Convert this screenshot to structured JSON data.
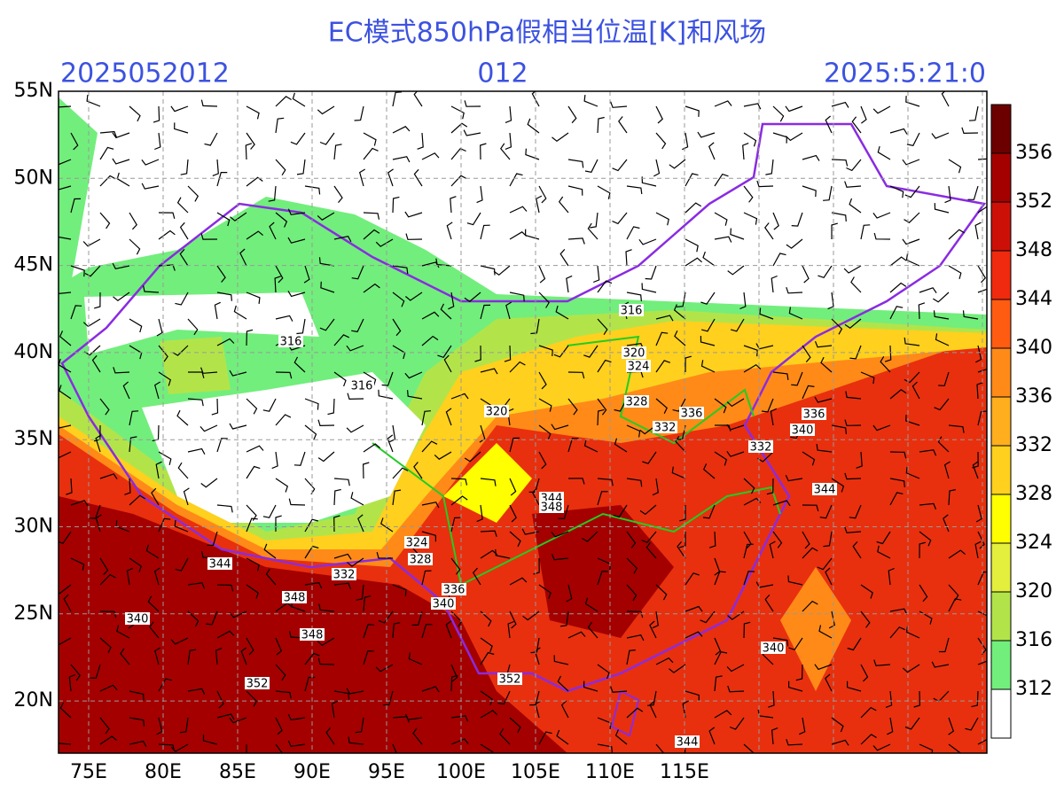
{
  "header": {
    "title": "EC模式850hPa假相当位温[K]和风场",
    "init_time": "2025052012",
    "forecast_hour": "012",
    "valid_time": "2025:5:21:0"
  },
  "map": {
    "lat_ticks": [
      {
        "value": 55,
        "label": "55N"
      },
      {
        "value": 50,
        "label": "50N"
      },
      {
        "value": 45,
        "label": "45N"
      },
      {
        "value": 40,
        "label": "40N"
      },
      {
        "value": 35,
        "label": "35N"
      },
      {
        "value": 30,
        "label": "30N"
      },
      {
        "value": 25,
        "label": "25N"
      },
      {
        "value": 20,
        "label": "20N"
      }
    ],
    "lon_ticks": [
      {
        "value": 75,
        "label": "75E"
      },
      {
        "value": 80,
        "label": "80E"
      },
      {
        "value": 85,
        "label": "85E"
      },
      {
        "value": 90,
        "label": "90E"
      },
      {
        "value": 95,
        "label": "95E"
      },
      {
        "value": 100,
        "label": "100E"
      },
      {
        "value": 105,
        "label": "105E"
      },
      {
        "value": 110,
        "label": "110E"
      },
      {
        "value": 115,
        "label": "115E"
      }
    ],
    "contour_labels": [
      316,
      316,
      316,
      320,
      320,
      324,
      328,
      332,
      336,
      336,
      340,
      332,
      344,
      344,
      348,
      324,
      328,
      332,
      336,
      340,
      344,
      340,
      348,
      348,
      352,
      352,
      340,
      344
    ]
  },
  "colorbar": {
    "levels": [
      312,
      316,
      320,
      324,
      328,
      332,
      336,
      340,
      344,
      348,
      352,
      356
    ],
    "colors": [
      "#ffffff",
      "#72ee7c",
      "#b2e44a",
      "#e4ee3c",
      "#ffff00",
      "#ffd01e",
      "#ffae1e",
      "#ff8a18",
      "#ff5c12",
      "#f02a0e",
      "#cc1008",
      "#a40000",
      "#6c0000"
    ]
  }
}
